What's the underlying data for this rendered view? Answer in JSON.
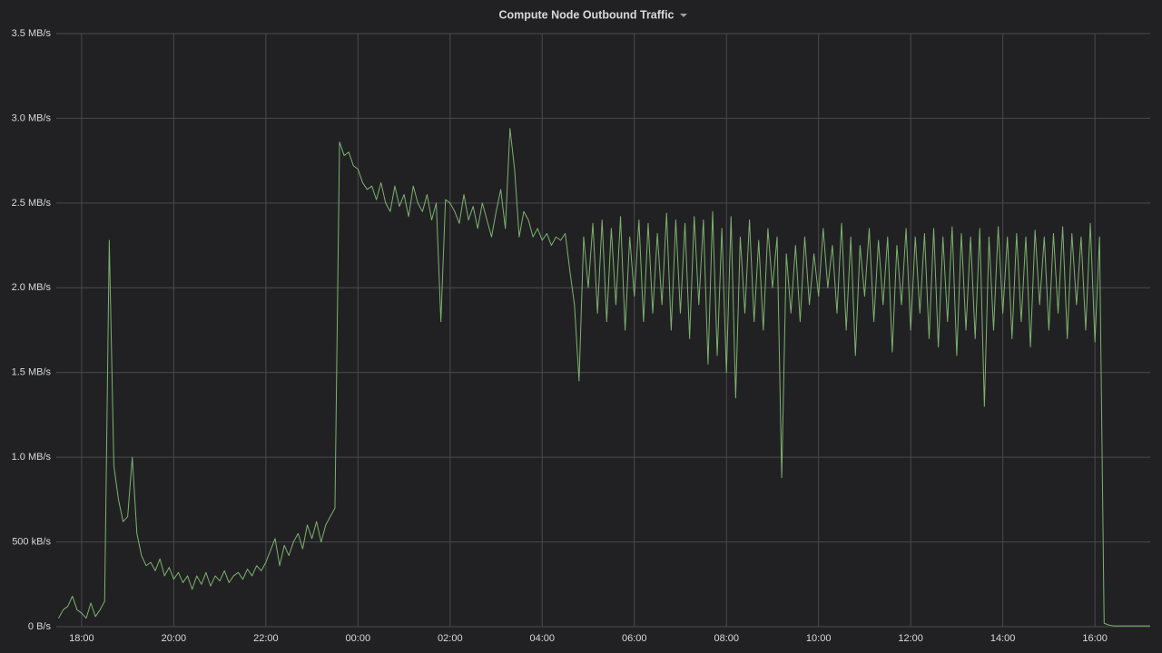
{
  "chart_data": {
    "type": "line",
    "title": "Compute Node Outbound Traffic",
    "color": "#7eb26d",
    "grid": true,
    "xlim": [
      17.45,
      41.2
    ],
    "xticks": [
      {
        "value": 18,
        "label": "18:00"
      },
      {
        "value": 20,
        "label": "20:00"
      },
      {
        "value": 22,
        "label": "22:00"
      },
      {
        "value": 24,
        "label": "00:00"
      },
      {
        "value": 26,
        "label": "02:00"
      },
      {
        "value": 28,
        "label": "04:00"
      },
      {
        "value": 30,
        "label": "06:00"
      },
      {
        "value": 32,
        "label": "08:00"
      },
      {
        "value": 34,
        "label": "10:00"
      },
      {
        "value": 36,
        "label": "12:00"
      },
      {
        "value": 38,
        "label": "14:00"
      },
      {
        "value": 40,
        "label": "16:00"
      }
    ],
    "ylim": [
      0,
      3.5
    ],
    "yticks": [
      {
        "value": 0,
        "label": "0 B/s"
      },
      {
        "value": 0.5,
        "label": "500 kB/s"
      },
      {
        "value": 1,
        "label": "1.0 MB/s"
      },
      {
        "value": 1.5,
        "label": "1.5 MB/s"
      },
      {
        "value": 2,
        "label": "2.0 MB/s"
      },
      {
        "value": 2.5,
        "label": "2.5 MB/s"
      },
      {
        "value": 3,
        "label": "3.0 MB/s"
      },
      {
        "value": 3.5,
        "label": "3.5 MB/s"
      }
    ],
    "x": [
      17.5,
      17.6,
      17.7,
      17.8,
      17.9,
      18.0,
      18.1,
      18.2,
      18.3,
      18.4,
      18.5,
      18.6,
      18.7,
      18.8,
      18.9,
      19.0,
      19.1,
      19.2,
      19.3,
      19.4,
      19.5,
      19.6,
      19.7,
      19.8,
      19.9,
      20.0,
      20.1,
      20.2,
      20.3,
      20.4,
      20.5,
      20.6,
      20.7,
      20.8,
      20.9,
      21.0,
      21.1,
      21.2,
      21.3,
      21.4,
      21.5,
      21.6,
      21.7,
      21.8,
      21.9,
      22.0,
      22.1,
      22.2,
      22.3,
      22.4,
      22.5,
      22.6,
      22.7,
      22.8,
      22.9,
      23.0,
      23.1,
      23.2,
      23.3,
      23.4,
      23.5,
      23.6,
      23.7,
      23.8,
      23.9,
      24.0,
      24.1,
      24.2,
      24.3,
      24.4,
      24.5,
      24.6,
      24.7,
      24.8,
      24.9,
      25.0,
      25.1,
      25.2,
      25.3,
      25.4,
      25.5,
      25.6,
      25.7,
      25.8,
      25.9,
      26.0,
      26.1,
      26.2,
      26.3,
      26.4,
      26.5,
      26.6,
      26.7,
      26.8,
      26.9,
      27.0,
      27.1,
      27.2,
      27.3,
      27.4,
      27.5,
      27.6,
      27.7,
      27.8,
      27.9,
      28.0,
      28.1,
      28.2,
      28.3,
      28.4,
      28.5,
      28.6,
      28.7,
      28.8,
      28.9,
      29.0,
      29.1,
      29.2,
      29.3,
      29.4,
      29.5,
      29.6,
      29.7,
      29.8,
      29.9,
      30.0,
      30.1,
      30.2,
      30.3,
      30.4,
      30.5,
      30.6,
      30.7,
      30.8,
      30.9,
      31.0,
      31.1,
      31.2,
      31.3,
      31.4,
      31.5,
      31.6,
      31.7,
      31.8,
      31.9,
      32.0,
      32.1,
      32.2,
      32.3,
      32.4,
      32.5,
      32.6,
      32.7,
      32.8,
      32.9,
      33.0,
      33.1,
      33.2,
      33.3,
      33.4,
      33.5,
      33.6,
      33.7,
      33.8,
      33.9,
      34.0,
      34.1,
      34.2,
      34.3,
      34.4,
      34.5,
      34.6,
      34.7,
      34.8,
      34.9,
      35.0,
      35.1,
      35.2,
      35.3,
      35.4,
      35.5,
      35.6,
      35.7,
      35.8,
      35.9,
      36.0,
      36.1,
      36.2,
      36.3,
      36.4,
      36.5,
      36.6,
      36.7,
      36.8,
      36.9,
      37.0,
      37.1,
      37.2,
      37.3,
      37.4,
      37.5,
      37.6,
      37.7,
      37.8,
      37.9,
      38.0,
      38.1,
      38.2,
      38.3,
      38.4,
      38.5,
      38.6,
      38.7,
      38.8,
      38.9,
      39.0,
      39.1,
      39.2,
      39.3,
      39.4,
      39.5,
      39.6,
      39.7,
      39.8,
      39.9,
      40.0,
      40.1,
      40.2,
      40.3,
      40.4,
      40.5,
      40.6,
      40.7,
      40.8,
      40.9,
      41.0,
      41.1,
      41.2
    ],
    "values": [
      0.05,
      0.1,
      0.12,
      0.18,
      0.1,
      0.08,
      0.05,
      0.14,
      0.06,
      0.1,
      0.15,
      2.28,
      0.95,
      0.75,
      0.62,
      0.65,
      1.0,
      0.55,
      0.42,
      0.36,
      0.38,
      0.33,
      0.4,
      0.3,
      0.35,
      0.28,
      0.32,
      0.26,
      0.3,
      0.22,
      0.3,
      0.25,
      0.32,
      0.24,
      0.3,
      0.27,
      0.33,
      0.26,
      0.3,
      0.32,
      0.28,
      0.34,
      0.3,
      0.36,
      0.33,
      0.38,
      0.45,
      0.52,
      0.36,
      0.48,
      0.42,
      0.5,
      0.55,
      0.46,
      0.6,
      0.52,
      0.62,
      0.5,
      0.6,
      0.65,
      0.7,
      2.86,
      2.78,
      2.8,
      2.72,
      2.7,
      2.62,
      2.58,
      2.6,
      2.52,
      2.62,
      2.5,
      2.45,
      2.6,
      2.48,
      2.55,
      2.42,
      2.6,
      2.5,
      2.45,
      2.55,
      2.4,
      2.5,
      1.8,
      2.52,
      2.5,
      2.45,
      2.38,
      2.55,
      2.4,
      2.48,
      2.35,
      2.5,
      2.4,
      2.3,
      2.45,
      2.58,
      2.35,
      2.94,
      2.7,
      2.3,
      2.45,
      2.4,
      2.3,
      2.35,
      2.28,
      2.32,
      2.25,
      2.3,
      2.28,
      2.32,
      2.1,
      1.9,
      1.45,
      2.3,
      2.0,
      2.38,
      1.85,
      2.4,
      1.8,
      2.35,
      1.9,
      2.42,
      1.75,
      2.3,
      1.95,
      2.4,
      1.8,
      2.38,
      1.85,
      2.32,
      1.9,
      2.44,
      1.75,
      2.4,
      1.85,
      2.38,
      1.7,
      2.42,
      1.9,
      2.4,
      1.55,
      2.45,
      1.6,
      2.35,
      1.5,
      2.42,
      1.35,
      2.3,
      1.85,
      2.4,
      1.8,
      2.28,
      1.75,
      2.35,
      2.0,
      2.3,
      0.88,
      2.2,
      1.85,
      2.25,
      1.8,
      2.3,
      1.9,
      2.2,
      1.95,
      2.35,
      2.0,
      2.25,
      1.85,
      2.38,
      1.75,
      2.3,
      1.6,
      2.25,
      1.95,
      2.35,
      1.8,
      2.28,
      1.9,
      2.3,
      1.62,
      2.25,
      1.9,
      2.35,
      1.75,
      2.3,
      1.85,
      2.32,
      1.7,
      2.35,
      1.65,
      2.3,
      1.8,
      2.36,
      1.6,
      2.32,
      1.75,
      2.3,
      1.7,
      2.35,
      1.3,
      2.3,
      1.75,
      2.36,
      1.85,
      2.3,
      1.7,
      2.32,
      1.8,
      2.3,
      1.65,
      2.34,
      1.9,
      2.3,
      1.75,
      2.32,
      1.85,
      2.36,
      1.7,
      2.32,
      1.9,
      2.3,
      1.75,
      2.38,
      1.68,
      2.3,
      0.02,
      0.01,
      0.005,
      0.005,
      0.005,
      0.005,
      0.005,
      0.005,
      0.005,
      0.005,
      0.005
    ]
  }
}
